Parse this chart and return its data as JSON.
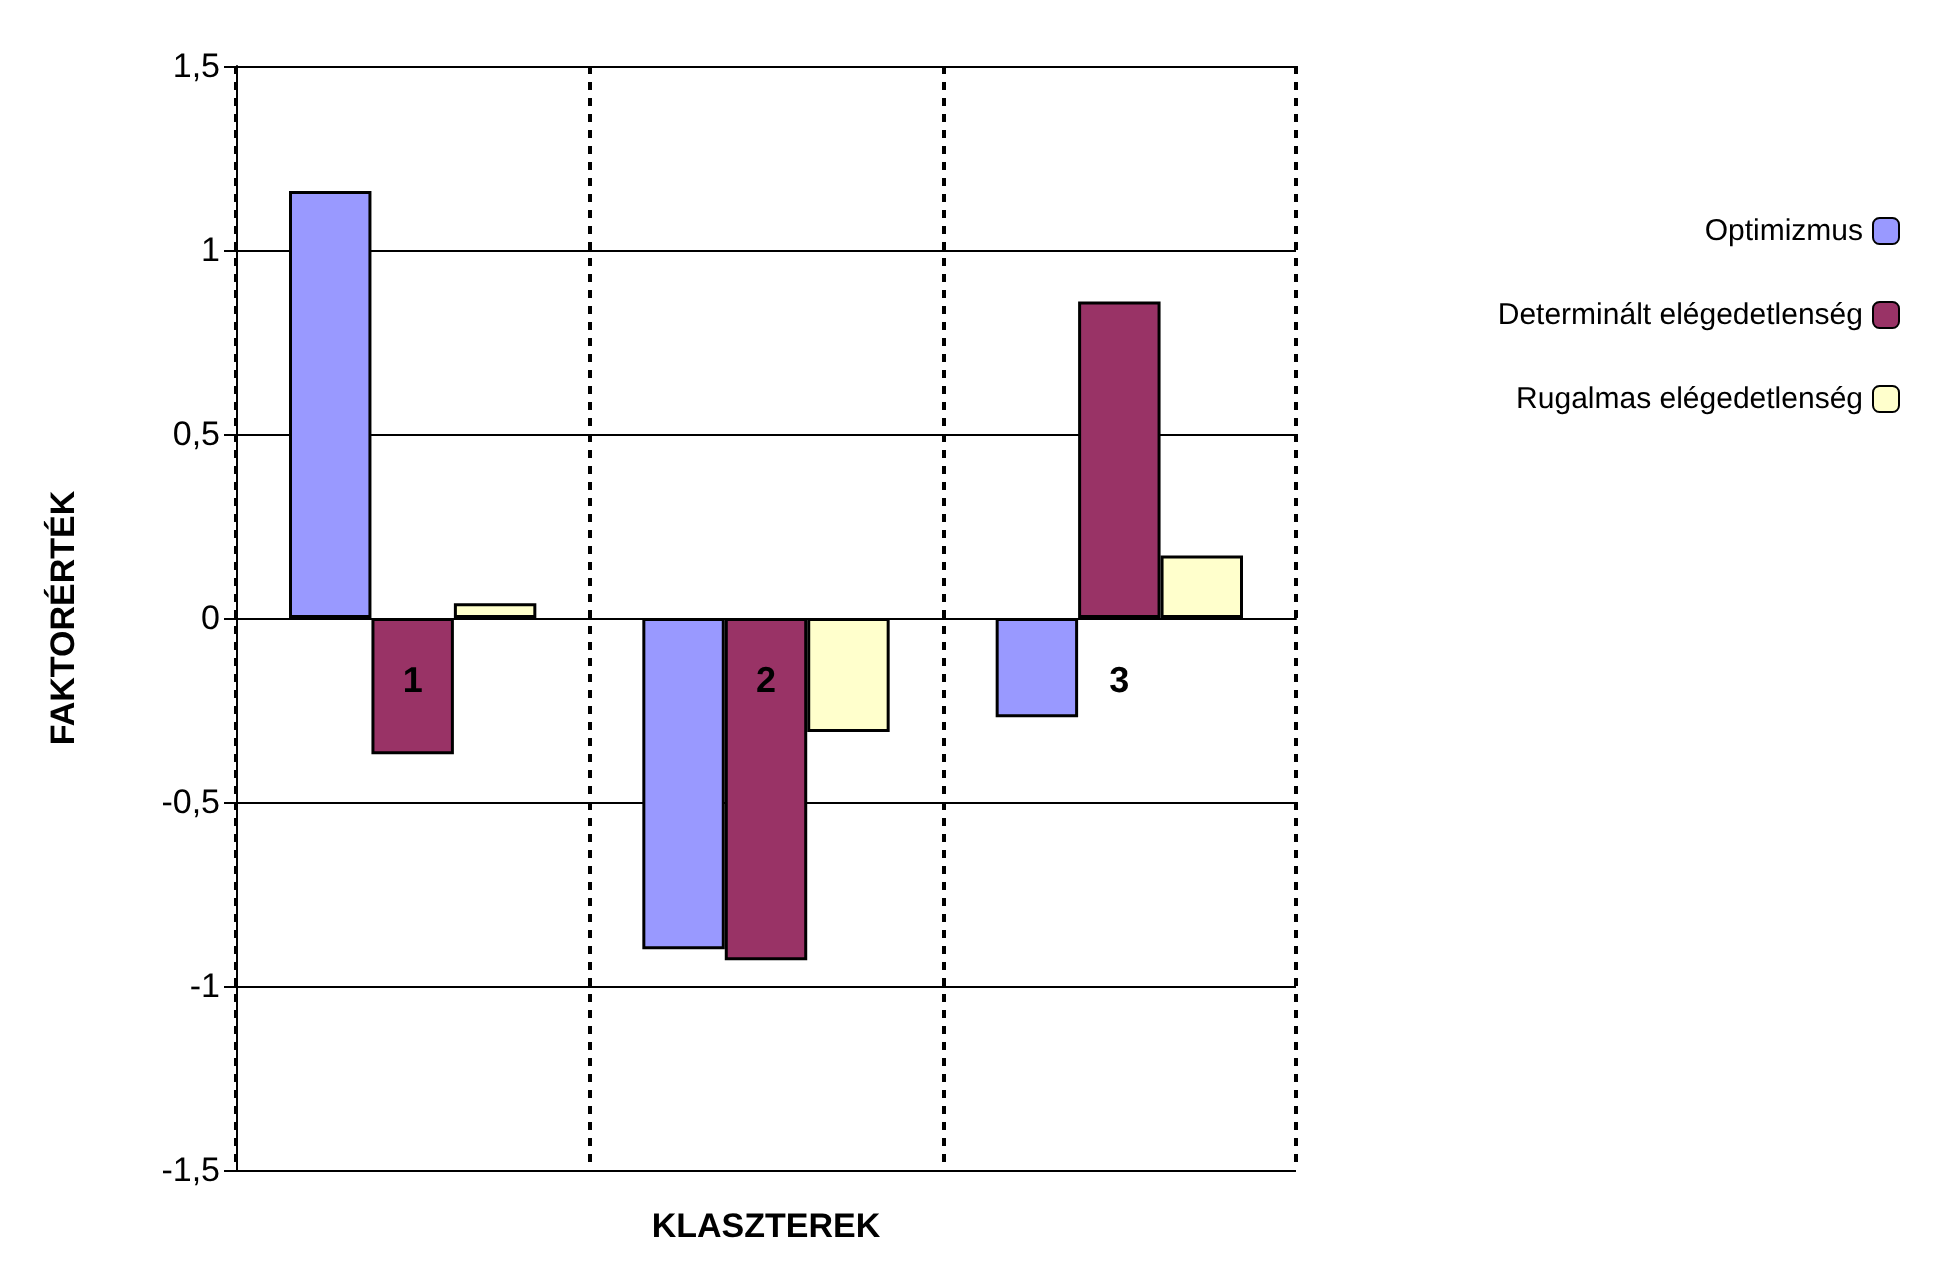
{
  "chart_data": {
    "type": "bar",
    "xlabel": "KLASZTEREK",
    "ylabel": "FAKTORÉRTÉK",
    "categories": [
      "1",
      "2",
      "3"
    ],
    "series": [
      {
        "name": "Optimizmus",
        "color": "#9999ff",
        "values": [
          1.16,
          -0.9,
          -0.27
        ]
      },
      {
        "name": "Determinált elégedetlenség",
        "color": "#993366",
        "values": [
          -0.37,
          -0.93,
          0.86
        ]
      },
      {
        "name": "Rugalmas elégedetlenség",
        "color": "#ffffcc",
        "values": [
          0.04,
          -0.31,
          0.17
        ]
      }
    ],
    "ylim": [
      -1.5,
      1.5
    ],
    "yticks": [
      {
        "value": -1.5,
        "label": "-1,5"
      },
      {
        "value": -1,
        "label": "-1"
      },
      {
        "value": -0.5,
        "label": "-0,5"
      },
      {
        "value": 0,
        "label": "0"
      },
      {
        "value": 0.5,
        "label": "0,5"
      },
      {
        "value": 1,
        "label": "1"
      },
      {
        "value": 1.5,
        "label": "1,5"
      }
    ],
    "grid": true,
    "legend": "right"
  }
}
